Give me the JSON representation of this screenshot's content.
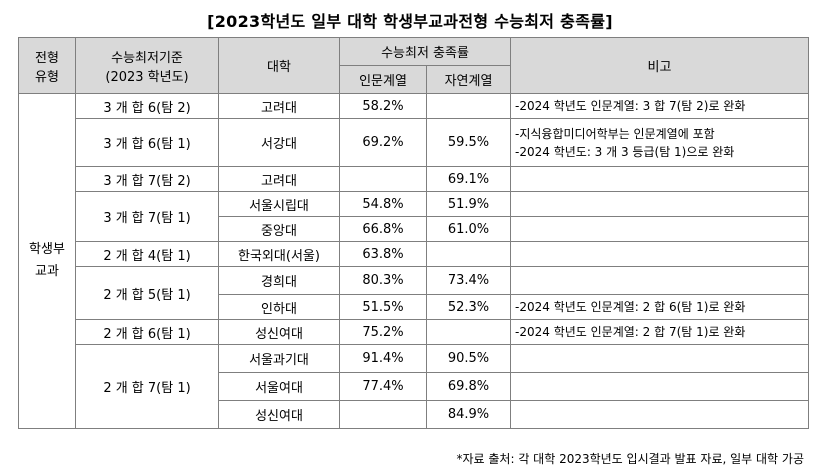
{
  "title": "[2023학년도 일부 대학 학생부교과전형 수능최저 충족률]",
  "headers": {
    "type": "전형\n유형",
    "criteria": "수능최저기준\n(2023 학년도)",
    "univ": "대학",
    "rate_group": "수능최저 충족률",
    "humanities": "인문계열",
    "natural": "자연계열",
    "note": "비고"
  },
  "type_label": "학생부\n교과",
  "groups": [
    {
      "criteria": "3 개 합 6(탐 2)",
      "rows": [
        {
          "univ": "고려대",
          "hum": "58.2%",
          "nat": "",
          "note": "-2024 학년도 인문계열: 3 합 7(탐 2)로 완화"
        }
      ]
    },
    {
      "criteria": "3 개 합 6(탐 1)",
      "rows": [
        {
          "univ": "서강대",
          "hum": "69.2%",
          "nat": "59.5%",
          "note": "-지식융합미디어학부는 인문계열에 포함\n-2024 학년도: 3 개 3 등급(탐 1)으로 완화"
        }
      ]
    },
    {
      "criteria": "3 개 합 7(탐 2)",
      "rows": [
        {
          "univ": "고려대",
          "hum": "",
          "nat": "69.1%",
          "note": ""
        }
      ]
    },
    {
      "criteria": "3 개 합 7(탐 1)",
      "rows": [
        {
          "univ": "서울시립대",
          "hum": "54.8%",
          "nat": "51.9%",
          "note": ""
        },
        {
          "univ": "중앙대",
          "hum": "66.8%",
          "nat": "61.0%",
          "note": ""
        }
      ]
    },
    {
      "criteria": "2 개 합 4(탐 1)",
      "rows": [
        {
          "univ": "한국외대(서울)",
          "hum": "63.8%",
          "nat": "",
          "note": ""
        }
      ]
    },
    {
      "criteria": "2 개 합 5(탐 1)",
      "rows": [
        {
          "univ": "경희대",
          "hum": "80.3%",
          "nat": "73.4%",
          "note": ""
        },
        {
          "univ": "인하대",
          "hum": "51.5%",
          "nat": "52.3%",
          "note": "-2024 학년도 인문계열: 2 합 6(탐 1)로 완화"
        }
      ]
    },
    {
      "criteria": "2 개 합 6(탐 1)",
      "rows": [
        {
          "univ": "성신여대",
          "hum": "75.2%",
          "nat": "",
          "note": "-2024 학년도 인문계열: 2 합 7(탐 1)로 완화"
        }
      ]
    },
    {
      "criteria": "2 개 합 7(탐 1)",
      "rows": [
        {
          "univ": "서울과기대",
          "hum": "91.4%",
          "nat": "90.5%",
          "note": ""
        },
        {
          "univ": "서울여대",
          "hum": "77.4%",
          "nat": "69.8%",
          "note": ""
        },
        {
          "univ": "성신여대",
          "hum": "",
          "nat": "84.9%",
          "note": ""
        }
      ]
    }
  ],
  "footer": "*자료 출처: 각 대학 2023학년도 입시결과 발표 자료, 일부 대학 가공"
}
